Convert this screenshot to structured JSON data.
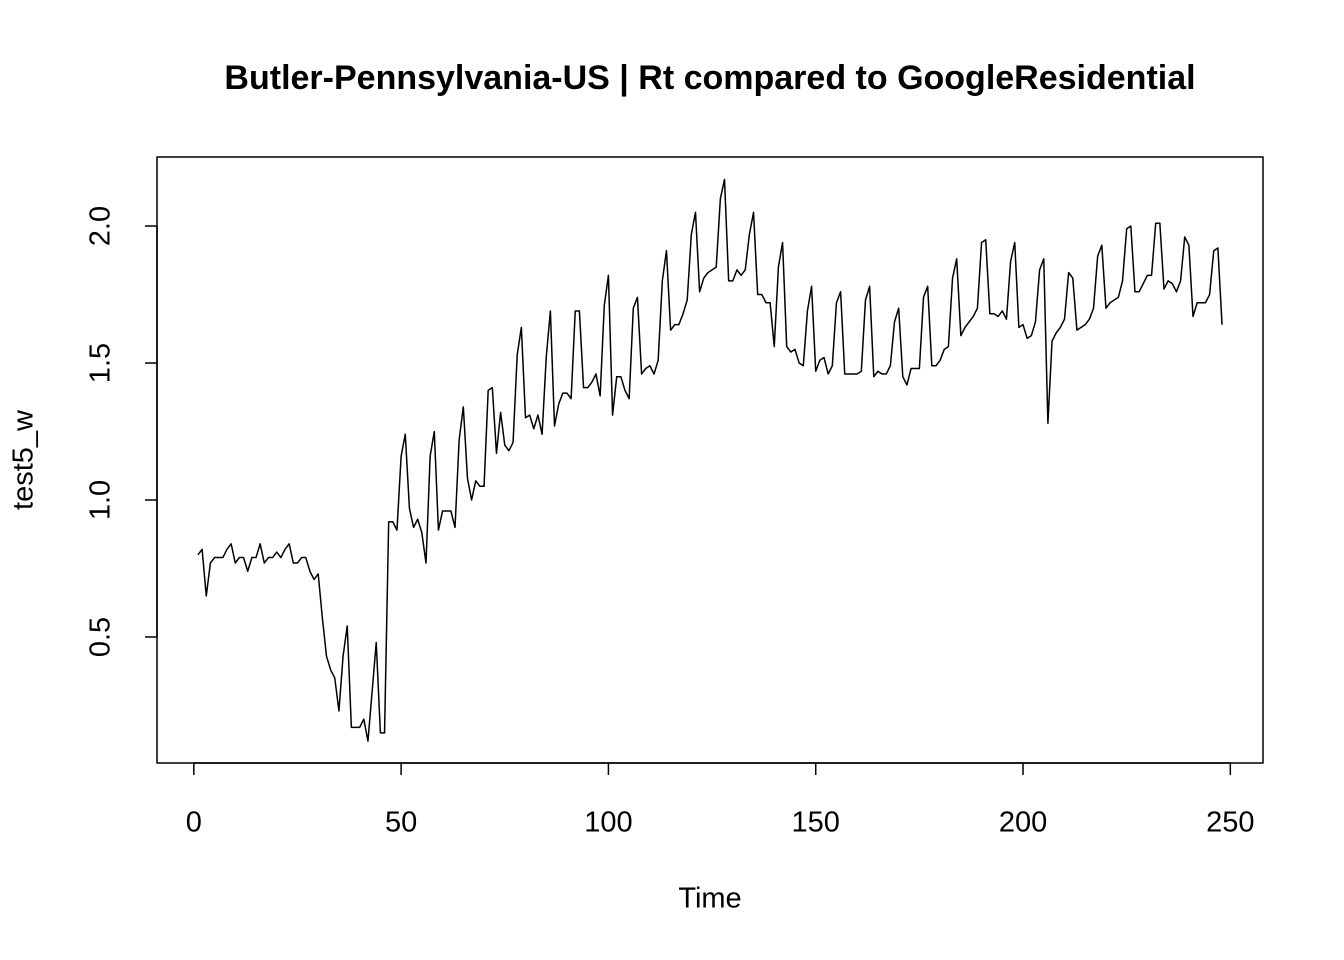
{
  "chart_data": {
    "type": "line",
    "title": "Butler-Pennsylvania-US | Rt compared to GoogleResidential",
    "xlabel": "Time",
    "ylabel": "test5_w",
    "color": "#000000",
    "xlim": [
      -8.88,
      257.88
    ],
    "ylim": [
      0.04,
      2.252
    ],
    "xticks": [
      0,
      50,
      100,
      150,
      200,
      250
    ],
    "yticks": [
      {
        "value": 0.5,
        "label": "0.5"
      },
      {
        "value": 1,
        "label": "1.0"
      },
      {
        "value": 1.5,
        "label": "1.5"
      },
      {
        "value": 2,
        "label": "2.0"
      }
    ],
    "x": [
      1,
      2,
      3,
      4,
      5,
      6,
      7,
      8,
      9,
      10,
      11,
      12,
      13,
      14,
      15,
      16,
      17,
      18,
      19,
      20,
      21,
      22,
      23,
      24,
      25,
      26,
      27,
      28,
      29,
      30,
      31,
      32,
      33,
      34,
      35,
      36,
      37,
      38,
      39,
      40,
      41,
      42,
      43,
      44,
      45,
      46,
      47,
      48,
      49,
      50,
      51,
      52,
      53,
      54,
      55,
      56,
      57,
      58,
      59,
      60,
      61,
      62,
      63,
      64,
      65,
      66,
      67,
      68,
      69,
      70,
      71,
      72,
      73,
      74,
      75,
      76,
      77,
      78,
      79,
      80,
      81,
      82,
      83,
      84,
      85,
      86,
      87,
      88,
      89,
      90,
      91,
      92,
      93,
      94,
      95,
      96,
      97,
      98,
      99,
      100,
      101,
      102,
      103,
      104,
      105,
      106,
      107,
      108,
      109,
      110,
      111,
      112,
      113,
      114,
      115,
      116,
      117,
      118,
      119,
      120,
      121,
      122,
      123,
      124,
      125,
      126,
      127,
      128,
      129,
      130,
      131,
      132,
      133,
      134,
      135,
      136,
      137,
      138,
      139,
      140,
      141,
      142,
      143,
      144,
      145,
      146,
      147,
      148,
      149,
      150,
      151,
      152,
      153,
      154,
      155,
      156,
      157,
      158,
      159,
      160,
      161,
      162,
      163,
      164,
      165,
      166,
      167,
      168,
      169,
      170,
      171,
      172,
      173,
      174,
      175,
      176,
      177,
      178,
      179,
      180,
      181,
      182,
      183,
      184,
      185,
      186,
      187,
      188,
      189,
      190,
      191,
      192,
      193,
      194,
      195,
      196,
      197,
      198,
      199,
      200,
      201,
      202,
      203,
      204,
      205,
      206,
      207,
      208,
      209,
      210,
      211,
      212,
      213,
      214,
      215,
      216,
      217,
      218,
      219,
      220,
      221,
      222,
      223,
      224,
      225,
      226,
      227,
      228,
      229,
      230,
      231,
      232,
      233,
      234,
      235,
      236,
      237,
      238,
      239,
      240,
      241,
      242,
      243,
      244,
      245,
      246,
      247,
      248
    ],
    "values": [
      0.8,
      0.82,
      0.65,
      0.77,
      0.79,
      0.79,
      0.79,
      0.82,
      0.84,
      0.77,
      0.79,
      0.79,
      0.74,
      0.79,
      0.79,
      0.84,
      0.77,
      0.79,
      0.79,
      0.81,
      0.79,
      0.82,
      0.84,
      0.77,
      0.77,
      0.79,
      0.79,
      0.74,
      0.71,
      0.73,
      0.57,
      0.43,
      0.38,
      0.35,
      0.23,
      0.43,
      0.54,
      0.17,
      0.17,
      0.17,
      0.2,
      0.12,
      0.3,
      0.48,
      0.15,
      0.15,
      0.92,
      0.92,
      0.89,
      1.16,
      1.24,
      0.97,
      0.9,
      0.93,
      0.88,
      0.77,
      1.16,
      1.25,
      0.89,
      0.96,
      0.96,
      0.96,
      0.9,
      1.22,
      1.34,
      1.08,
      1.0,
      1.07,
      1.05,
      1.05,
      1.4,
      1.41,
      1.17,
      1.32,
      1.2,
      1.18,
      1.21,
      1.53,
      1.63,
      1.3,
      1.31,
      1.26,
      1.31,
      1.24,
      1.52,
      1.69,
      1.27,
      1.35,
      1.39,
      1.39,
      1.37,
      1.69,
      1.69,
      1.41,
      1.41,
      1.43,
      1.46,
      1.38,
      1.71,
      1.82,
      1.31,
      1.45,
      1.45,
      1.4,
      1.37,
      1.7,
      1.74,
      1.46,
      1.48,
      1.49,
      1.46,
      1.51,
      1.8,
      1.91,
      1.62,
      1.64,
      1.64,
      1.68,
      1.73,
      1.97,
      2.05,
      1.76,
      1.81,
      1.83,
      1.84,
      1.85,
      2.1,
      2.17,
      1.8,
      1.8,
      1.84,
      1.82,
      1.84,
      1.97,
      2.05,
      1.75,
      1.75,
      1.72,
      1.72,
      1.56,
      1.85,
      1.94,
      1.56,
      1.54,
      1.55,
      1.5,
      1.49,
      1.69,
      1.78,
      1.47,
      1.51,
      1.52,
      1.46,
      1.49,
      1.72,
      1.76,
      1.46,
      1.46,
      1.46,
      1.46,
      1.47,
      1.73,
      1.78,
      1.45,
      1.47,
      1.46,
      1.46,
      1.49,
      1.65,
      1.7,
      1.45,
      1.42,
      1.48,
      1.48,
      1.48,
      1.74,
      1.78,
      1.49,
      1.49,
      1.51,
      1.55,
      1.56,
      1.81,
      1.88,
      1.6,
      1.63,
      1.65,
      1.67,
      1.7,
      1.94,
      1.95,
      1.68,
      1.68,
      1.67,
      1.69,
      1.66,
      1.87,
      1.94,
      1.63,
      1.64,
      1.59,
      1.6,
      1.65,
      1.84,
      1.88,
      1.28,
      1.58,
      1.61,
      1.63,
      1.66,
      1.83,
      1.81,
      1.62,
      1.63,
      1.64,
      1.66,
      1.7,
      1.89,
      1.93,
      1.7,
      1.72,
      1.73,
      1.74,
      1.8,
      1.99,
      2.0,
      1.76,
      1.76,
      1.79,
      1.82,
      1.82,
      2.01,
      2.01,
      1.77,
      1.8,
      1.79,
      1.76,
      1.8,
      1.96,
      1.93,
      1.67,
      1.72,
      1.72,
      1.72,
      1.75,
      1.91,
      1.92,
      1.64
    ]
  }
}
